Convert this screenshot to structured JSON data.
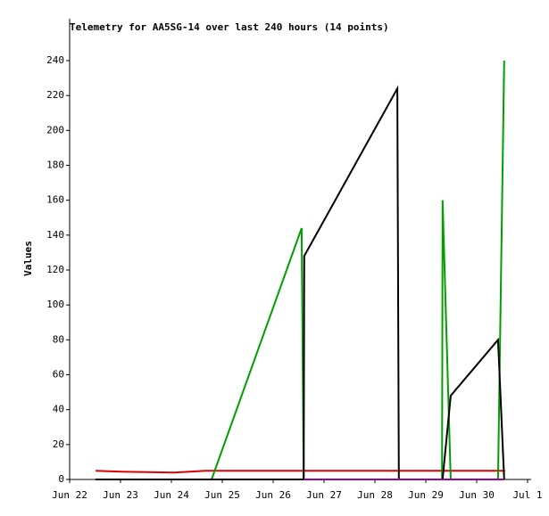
{
  "chart_data": {
    "type": "line",
    "title": "Telemetry for AA5SG-14 over last 240 hours (14 points)",
    "ylabel": "Values",
    "xlim": [
      0,
      9.07
    ],
    "xticks": [
      {
        "value": 0,
        "label": "Jun 22"
      },
      {
        "value": 1,
        "label": "Jun 23"
      },
      {
        "value": 2,
        "label": "Jun 24"
      },
      {
        "value": 3,
        "label": "Jun 25"
      },
      {
        "value": 4,
        "label": "Jun 26"
      },
      {
        "value": 5,
        "label": "Jun 27"
      },
      {
        "value": 6,
        "label": "Jun 28"
      },
      {
        "value": 7,
        "label": "Jun 29"
      },
      {
        "value": 8,
        "label": "Jun 30"
      },
      {
        "value": 9,
        "label": "Jul 1"
      }
    ],
    "ylim": [
      0,
      264
    ],
    "yticks": [
      0,
      20,
      40,
      60,
      80,
      100,
      120,
      140,
      160,
      180,
      200,
      220,
      240
    ],
    "series": [
      {
        "color": "#dd0000",
        "x": [
          0.51,
          1.0,
          2.05,
          2.67,
          8.56
        ],
        "values": [
          5,
          4.5,
          4,
          5,
          5
        ]
      },
      {
        "color": "#00a000",
        "x": [
          2.79,
          4.56,
          4.6,
          7.32,
          7.33,
          7.49,
          8.42,
          8.54
        ],
        "values": [
          0,
          144,
          0,
          0,
          160,
          0,
          0,
          240
        ]
      },
      {
        "color": "#000000",
        "x": [
          0.51,
          4.6,
          4.61,
          6.44,
          6.47,
          7.33,
          7.49,
          8.42,
          8.54
        ],
        "values": [
          0,
          0,
          128,
          224,
          0,
          0,
          48,
          80,
          0
        ]
      },
      {
        "color": "#a000a0",
        "x": [
          4.6,
          8.54
        ],
        "values": [
          0,
          0
        ]
      }
    ]
  }
}
